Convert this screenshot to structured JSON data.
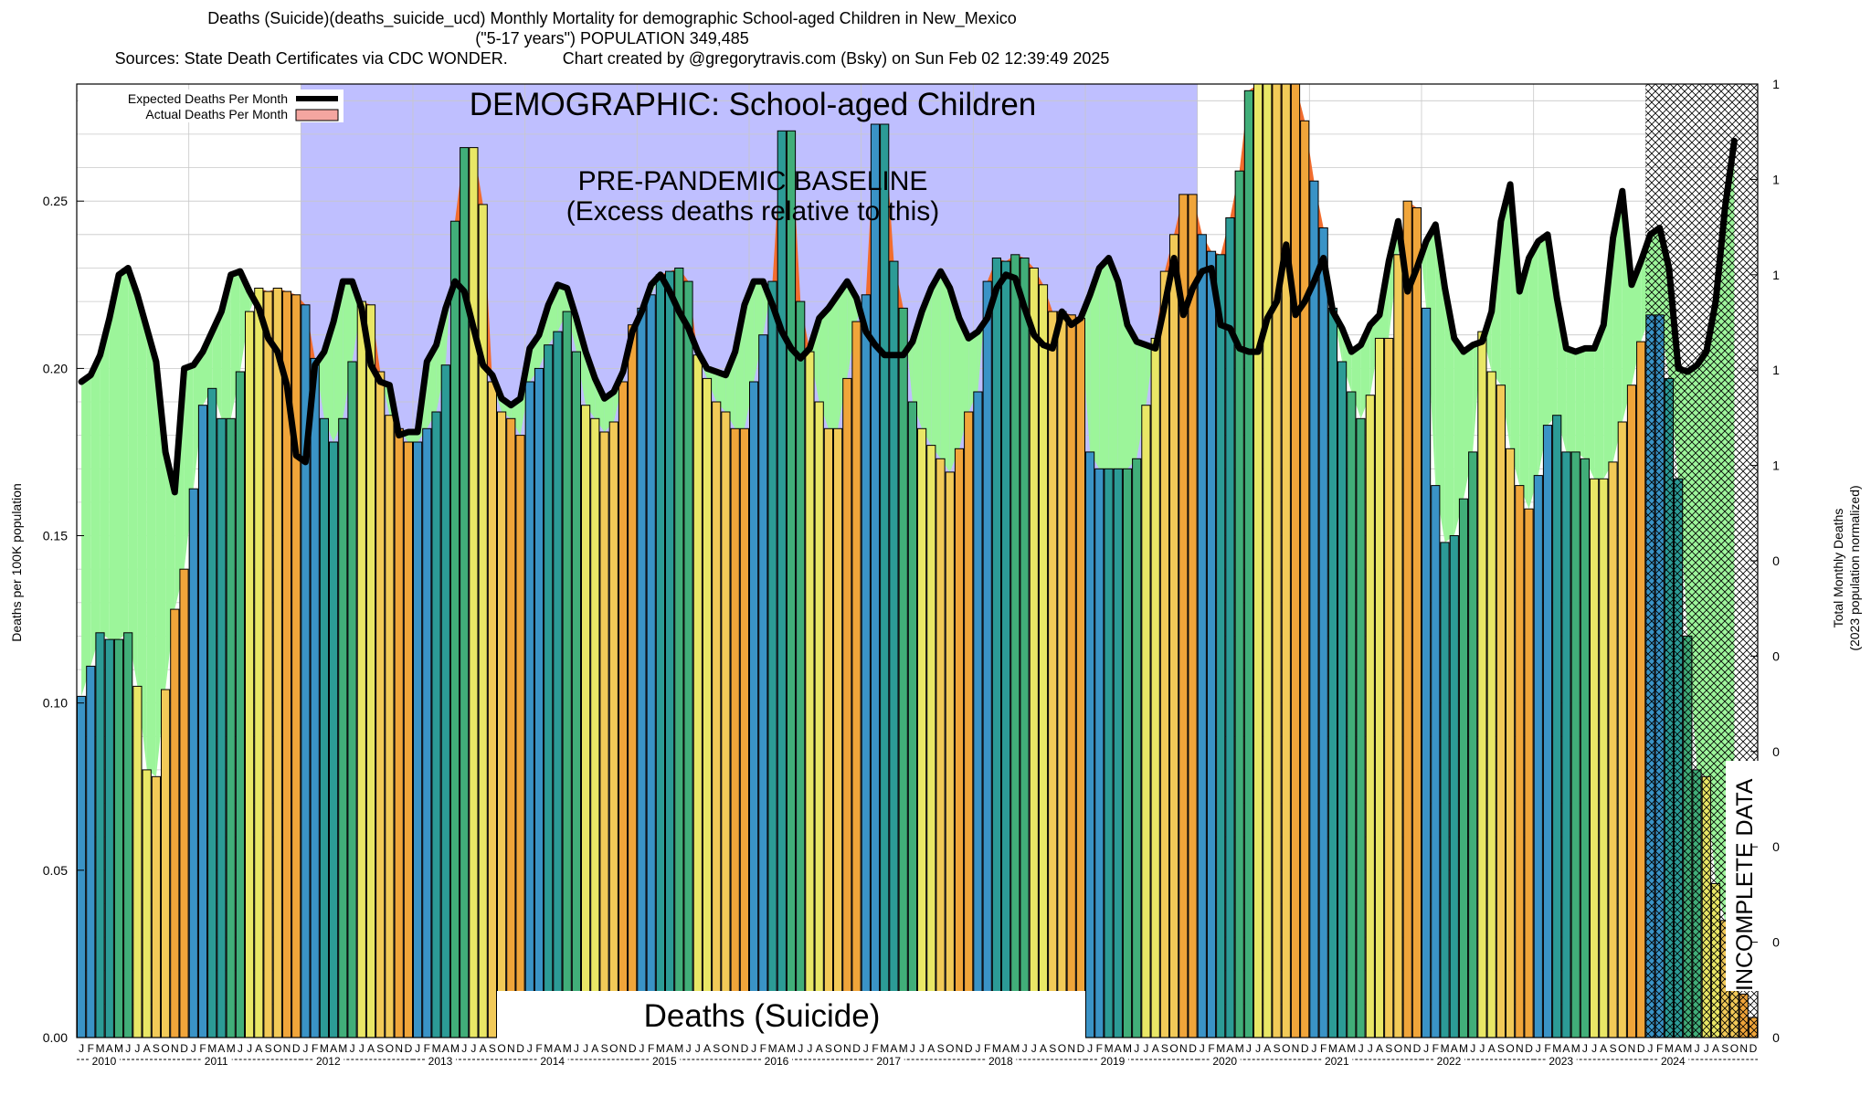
{
  "header": {
    "title_line1": "Deaths (Suicide)(deaths_suicide_ucd) Monthly Mortality for demographic School-aged Children in New_Mexico",
    "title_line2": "(\"5-17 years\") POPULATION 349,485",
    "title_line3": "Sources: State Death Certificates via CDC WONDER.            Chart created by @gregorytravis.com (Bsky) on Sun Feb 02 12:39:49 2025"
  },
  "chart_data": {
    "type": "bar",
    "ylabel": "Deaths per 100K population",
    "y2label_line1": "Total Monthly Deaths",
    "y2label_line2": "(2023 population normalized)",
    "ylim": [
      0,
      0.285
    ],
    "yticks": [
      "0.00",
      "0.05",
      "0.10",
      "0.15",
      "0.20",
      "0.25"
    ],
    "y2ticks": [
      "0",
      "0",
      "0",
      "0",
      "0",
      "0",
      "1",
      "1",
      "1",
      "1",
      "1"
    ],
    "start_year": 2010,
    "month_letters": [
      "J",
      "F",
      "M",
      "A",
      "M",
      "J",
      "J",
      "A",
      "S",
      "O",
      "N",
      "D"
    ],
    "year_labels": [
      "2010",
      "2011",
      "2012",
      "2013",
      "2014",
      "2015",
      "2016",
      "2017",
      "2018",
      "2019",
      "2020",
      "2021",
      "2022",
      "2023",
      "2024"
    ],
    "grid": true,
    "legend_position": "top-left",
    "legend": [
      {
        "name": "Expected Deaths Per Month",
        "color": "#000000"
      },
      {
        "name": "Actual Deaths Per Month",
        "color": "#f4a6a0"
      }
    ],
    "season_colors": [
      "#3a93c6",
      "#2c9b96",
      "#41ae79",
      "#e9e766",
      "#f2ca58",
      "#f0a53a"
    ],
    "excess_color": "#f26d2e",
    "deficit_color": "#9cf59a",
    "baseline_color": "#bfbfff",
    "annotations": {
      "demographic": "DEMOGRAPHIC: School-aged Children",
      "baseline_line1": "PRE-PANDEMIC BASELINE",
      "baseline_line2": "(Excess deaths relative to this)",
      "cause": "Deaths (Suicide)",
      "incomplete": "INCOMPLETE DATA"
    },
    "series": [
      {
        "name": "Actual Deaths Per Month",
        "values": [
          0.102,
          0.111,
          0.121,
          0.119,
          0.119,
          0.121,
          0.105,
          0.08,
          0.078,
          0.104,
          0.128,
          0.14,
          0.164,
          0.189,
          0.194,
          0.185,
          0.185,
          0.199,
          0.217,
          0.224,
          0.223,
          0.224,
          0.223,
          0.222,
          0.219,
          0.203,
          0.185,
          0.178,
          0.185,
          0.202,
          0.22,
          0.219,
          0.199,
          0.186,
          0.182,
          0.178,
          0.178,
          0.182,
          0.187,
          0.201,
          0.244,
          0.266,
          0.266,
          0.249,
          0.196,
          0.187,
          0.185,
          0.18,
          0.196,
          0.2,
          0.207,
          0.211,
          0.217,
          0.205,
          0.189,
          0.185,
          0.181,
          0.184,
          0.196,
          0.213,
          0.218,
          0.222,
          0.228,
          0.229,
          0.23,
          0.226,
          0.204,
          0.197,
          0.19,
          0.187,
          0.182,
          0.182,
          0.196,
          0.21,
          0.226,
          0.271,
          0.271,
          0.22,
          0.205,
          0.19,
          0.182,
          0.182,
          0.197,
          0.214,
          0.222,
          0.273,
          0.273,
          0.232,
          0.218,
          0.19,
          0.182,
          0.177,
          0.173,
          0.169,
          0.176,
          0.187,
          0.193,
          0.226,
          0.233,
          0.232,
          0.234,
          0.233,
          0.23,
          0.225,
          0.217,
          0.217,
          0.216,
          0.215,
          0.175,
          0.17,
          0.17,
          0.17,
          0.17,
          0.173,
          0.189,
          0.209,
          0.229,
          0.24,
          0.252,
          0.252,
          0.24,
          0.235,
          0.234,
          0.245,
          0.259,
          0.283,
          0.285,
          0.285,
          0.285,
          0.285,
          0.285,
          0.274,
          0.256,
          0.242,
          0.218,
          0.202,
          0.193,
          0.185,
          0.192,
          0.209,
          0.209,
          0.234,
          0.25,
          0.248,
          0.218,
          0.165,
          0.148,
          0.15,
          0.161,
          0.175,
          0.211,
          0.199,
          0.195,
          0.176,
          0.165,
          0.158,
          0.168,
          0.183,
          0.186,
          0.175,
          0.175,
          0.173,
          0.167,
          0.167,
          0.172,
          0.184,
          0.195,
          0.208,
          0.216,
          0.216,
          0.197,
          0.167,
          0.12,
          0.08,
          0.078,
          0.046,
          0.035,
          0.028,
          0.013,
          0.006
        ]
      },
      {
        "name": "Expected Deaths Per Month",
        "values": [
          0.196,
          0.198,
          0.204,
          0.215,
          0.228,
          0.23,
          0.222,
          0.212,
          0.202,
          0.175,
          0.163,
          0.2,
          0.201,
          0.205,
          0.211,
          0.217,
          0.228,
          0.229,
          0.223,
          0.218,
          0.209,
          0.205,
          0.195,
          0.174,
          0.172,
          0.201,
          0.205,
          0.214,
          0.226,
          0.226,
          0.218,
          0.201,
          0.196,
          0.195,
          0.18,
          0.181,
          0.181,
          0.202,
          0.207,
          0.218,
          0.226,
          0.223,
          0.212,
          0.201,
          0.198,
          0.191,
          0.189,
          0.191,
          0.206,
          0.21,
          0.219,
          0.225,
          0.224,
          0.215,
          0.205,
          0.197,
          0.191,
          0.193,
          0.199,
          0.211,
          0.217,
          0.225,
          0.228,
          0.223,
          0.217,
          0.212,
          0.205,
          0.2,
          0.199,
          0.198,
          0.205,
          0.219,
          0.226,
          0.226,
          0.219,
          0.211,
          0.206,
          0.203,
          0.206,
          0.215,
          0.218,
          0.222,
          0.226,
          0.221,
          0.211,
          0.207,
          0.204,
          0.204,
          0.204,
          0.208,
          0.217,
          0.224,
          0.229,
          0.224,
          0.215,
          0.209,
          0.211,
          0.215,
          0.224,
          0.228,
          0.227,
          0.218,
          0.21,
          0.207,
          0.206,
          0.217,
          0.213,
          0.215,
          0.222,
          0.23,
          0.233,
          0.226,
          0.213,
          0.208,
          0.207,
          0.206,
          0.219,
          0.233,
          0.216,
          0.224,
          0.229,
          0.23,
          0.213,
          0.212,
          0.206,
          0.205,
          0.205,
          0.215,
          0.22,
          0.237,
          0.216,
          0.22,
          0.226,
          0.233,
          0.217,
          0.212,
          0.205,
          0.207,
          0.213,
          0.216,
          0.232,
          0.244,
          0.223,
          0.23,
          0.238,
          0.243,
          0.224,
          0.209,
          0.205,
          0.207,
          0.208,
          0.217,
          0.244,
          0.255,
          0.223,
          0.233,
          0.238,
          0.24,
          0.221,
          0.206,
          0.205,
          0.206,
          0.206,
          0.213,
          0.239,
          0.253,
          0.225,
          0.232,
          0.24,
          0.242,
          0.23,
          0.2,
          0.199,
          0.201,
          0.205,
          0.22,
          0.248,
          0.268
        ]
      }
    ]
  }
}
